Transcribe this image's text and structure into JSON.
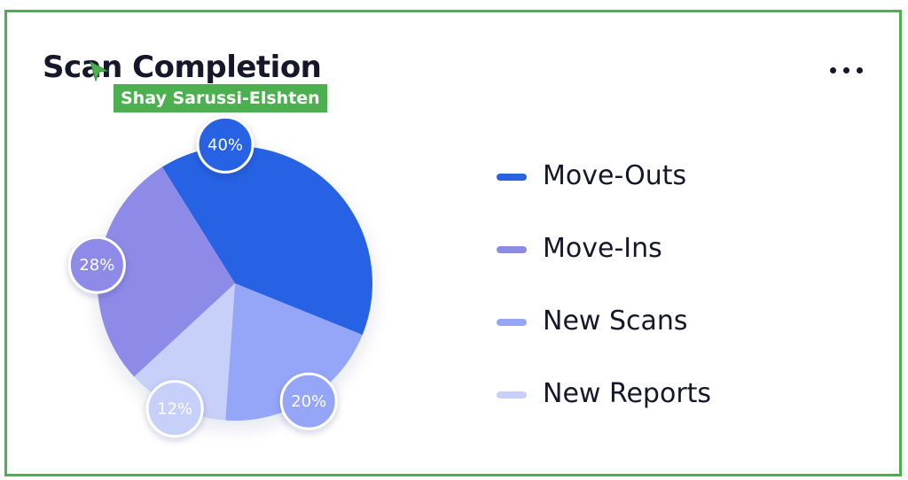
{
  "card": {
    "title": "Scan Completion",
    "menu_icon": "more-horizontal-icon",
    "border_color": "#4caf50"
  },
  "collaborator": {
    "name": "Shay Sarussi-Elshten",
    "cursor_icon": "pointer-cursor-icon",
    "color": "#4caf50"
  },
  "chart_data": {
    "type": "pie",
    "categories": [
      "Move-Outs",
      "New Scans",
      "New Reports",
      "Move-Ins"
    ],
    "values": [
      40,
      20,
      12,
      28
    ],
    "value_labels": [
      "40%",
      "20%",
      "12%",
      "28%"
    ],
    "colors": [
      "#2762e3",
      "#95a6f8",
      "#c7d0f8",
      "#8e8be8"
    ],
    "legend_placement": "right",
    "legend": [
      {
        "label": "Move-Outs",
        "color": "#2762e3"
      },
      {
        "label": "Move-Ins",
        "color": "#8e8be8"
      },
      {
        "label": "New Scans",
        "color": "#95a6f8"
      },
      {
        "label": "New Reports",
        "color": "#c7d0f8"
      }
    ]
  }
}
